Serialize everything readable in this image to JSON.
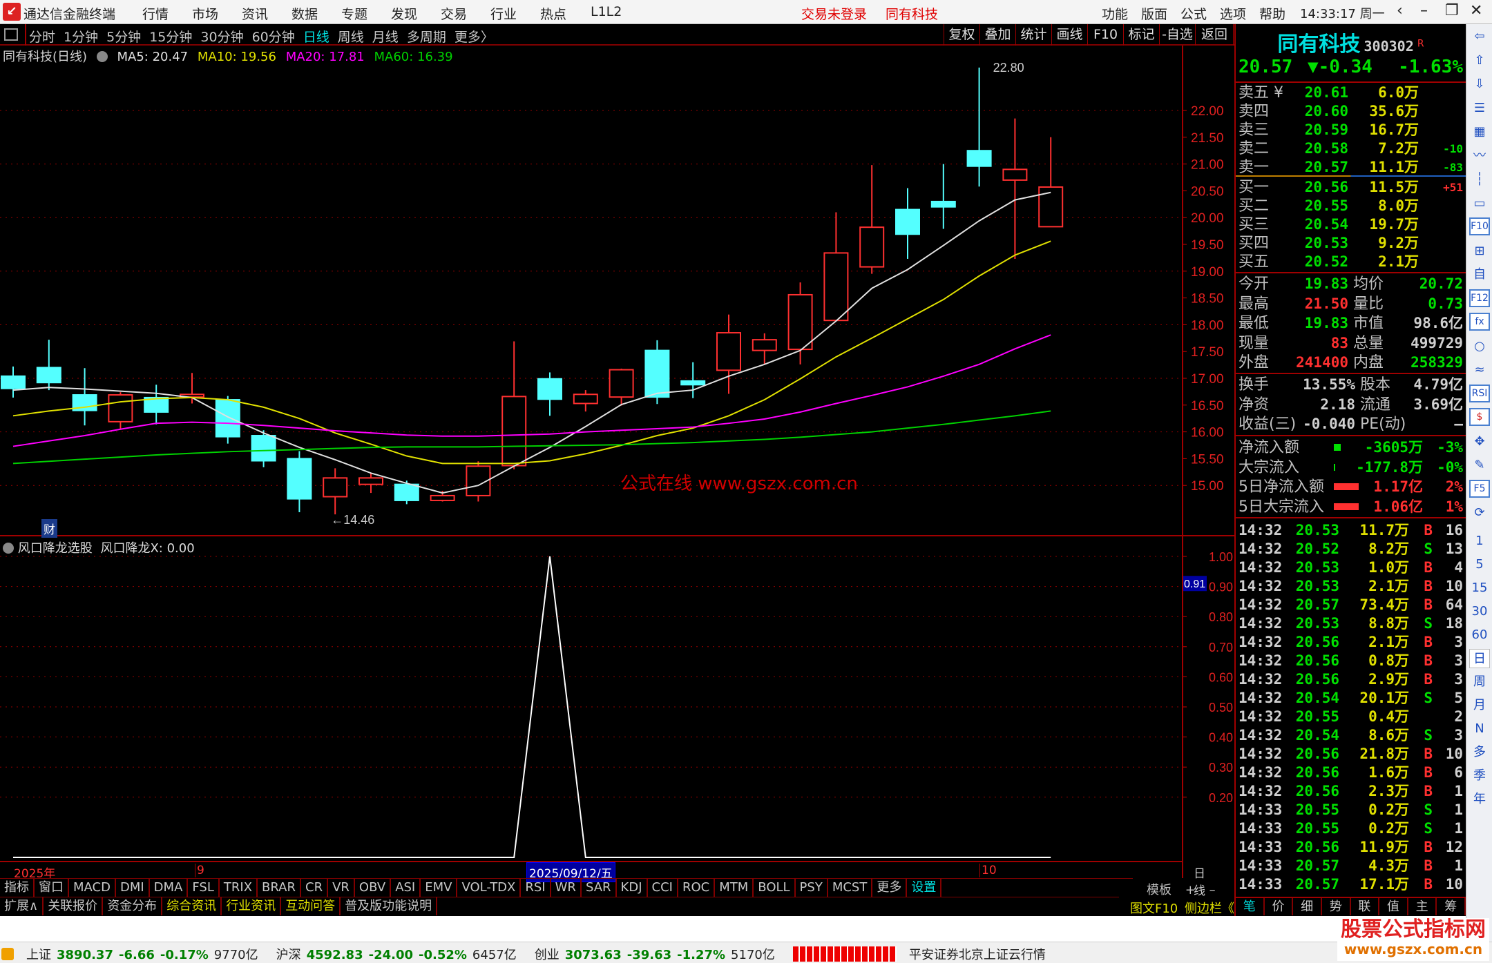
{
  "titlebar": {
    "app_title": "通达信金融终端",
    "menu": [
      "行情",
      "市场",
      "资讯",
      "数据",
      "专题",
      "发现",
      "交易",
      "行业",
      "热点",
      "L1L2"
    ],
    "login_status": "交易未登录",
    "current_stock": "同有科技",
    "right_menu": [
      "功能",
      "版面",
      "公式",
      "选项",
      "帮助"
    ],
    "clock": "14:33:17 周一",
    "controls": [
      "‹",
      "–",
      "❐",
      "✕"
    ]
  },
  "periodbar": {
    "periods": [
      "分时",
      "1分钟",
      "5分钟",
      "15分钟",
      "30分钟",
      "60分钟",
      "日线",
      "周线",
      "月线",
      "多周期",
      "更多〉"
    ],
    "active": "日线",
    "tools": [
      "复权",
      "叠加",
      "统计",
      "画线",
      "F10",
      "标记",
      "-自选",
      "返回"
    ]
  },
  "chart": {
    "title": "同有科技(日线)",
    "ma_labels": [
      {
        "text": "MA5: 20.47",
        "color": "#e0e0e0"
      },
      {
        "text": "MA10: 19.56",
        "color": "#e0e000"
      },
      {
        "text": "MA20: 17.81",
        "color": "#ff00ff"
      },
      {
        "text": "MA60: 16.39",
        "color": "#00d000"
      }
    ],
    "max_label": "22.80",
    "min_label": "←14.46",
    "badge": "财",
    "watermark": "公式在线  www.gszx.com.cn"
  },
  "chart_data": [
    {
      "type": "candlestick",
      "ylim": [
        14.2,
        23.0
      ],
      "y_ticks": [
        "22.00",
        "21.50",
        "21.00",
        "20.50",
        "20.00",
        "19.50",
        "19.00",
        "18.50",
        "18.00",
        "17.50",
        "17.00",
        "16.50",
        "16.00",
        "15.50",
        "15.00"
      ],
      "up_color": "#ff3030",
      "down_color": "#54ffff",
      "ohlc": [
        [
          17.04,
          17.22,
          16.64,
          16.81
        ],
        [
          17.2,
          17.72,
          16.78,
          16.92
        ],
        [
          16.69,
          17.19,
          16.12,
          16.4
        ],
        [
          16.19,
          16.74,
          16.05,
          16.69
        ],
        [
          16.64,
          16.88,
          16.14,
          16.37
        ],
        [
          16.65,
          17.1,
          16.53,
          16.7
        ],
        [
          16.6,
          16.67,
          15.78,
          15.91
        ],
        [
          15.93,
          16.03,
          15.34,
          15.46
        ],
        [
          15.5,
          15.64,
          14.5,
          14.75
        ],
        [
          14.79,
          15.32,
          14.46,
          15.14
        ],
        [
          15.02,
          15.23,
          14.86,
          15.14
        ],
        [
          15.02,
          15.09,
          14.65,
          14.72
        ],
        [
          14.72,
          14.9,
          14.7,
          14.81
        ],
        [
          14.81,
          15.45,
          14.7,
          15.36
        ],
        [
          15.37,
          17.69,
          15.3,
          16.66
        ],
        [
          16.99,
          17.11,
          16.3,
          16.61
        ],
        [
          16.53,
          16.78,
          16.38,
          16.7
        ],
        [
          16.65,
          17.18,
          16.49,
          17.16
        ],
        [
          17.52,
          17.71,
          16.52,
          16.65
        ],
        [
          16.95,
          17.3,
          16.63,
          16.88
        ],
        [
          17.15,
          18.19,
          16.71,
          17.85
        ],
        [
          17.52,
          17.84,
          17.26,
          17.72
        ],
        [
          17.54,
          18.79,
          17.26,
          18.56
        ],
        [
          18.08,
          20.1,
          18.08,
          19.34
        ],
        [
          19.08,
          20.98,
          18.95,
          19.82
        ],
        [
          20.15,
          20.55,
          19.23,
          19.69
        ],
        [
          20.3,
          21.0,
          19.79,
          20.2
        ],
        [
          21.25,
          22.8,
          20.58,
          20.96
        ],
        [
          20.7,
          21.85,
          19.23,
          20.9
        ],
        [
          19.83,
          21.5,
          19.83,
          20.57
        ]
      ],
      "series": [
        {
          "name": "MA5",
          "color": "#e0e0e0",
          "values": [
            16.78,
            16.83,
            16.8,
            16.76,
            16.72,
            16.64,
            16.28,
            15.98,
            15.71,
            15.48,
            15.23,
            15.04,
            14.86,
            15.0,
            15.36,
            15.71,
            16.1,
            16.51,
            16.72,
            16.78,
            17.04,
            17.26,
            17.52,
            18.07,
            18.68,
            19.03,
            19.48,
            19.94,
            20.33,
            20.47
          ]
        },
        {
          "name": "MA10",
          "color": "#e0e000",
          "values": [
            16.3,
            16.39,
            16.46,
            16.56,
            16.62,
            16.64,
            16.6,
            16.46,
            16.25,
            15.98,
            15.77,
            15.55,
            15.41,
            15.41,
            15.41,
            15.46,
            15.59,
            15.75,
            15.93,
            16.07,
            16.3,
            16.6,
            16.99,
            17.4,
            17.75,
            18.11,
            18.47,
            18.91,
            19.3,
            19.56
          ]
        },
        {
          "name": "MA20",
          "color": "#ff00ff",
          "values": [
            15.73,
            15.83,
            15.93,
            16.05,
            16.16,
            16.18,
            16.16,
            16.12,
            16.07,
            16.02,
            15.98,
            15.94,
            15.92,
            15.92,
            15.94,
            15.96,
            16.0,
            16.03,
            16.06,
            16.09,
            16.16,
            16.24,
            16.37,
            16.53,
            16.68,
            16.84,
            17.04,
            17.26,
            17.55,
            17.81
          ]
        },
        {
          "name": "MA60",
          "color": "#00d000",
          "values": [
            15.41,
            15.45,
            15.49,
            15.53,
            15.57,
            15.6,
            15.63,
            15.65,
            15.67,
            15.69,
            15.71,
            15.72,
            15.72,
            15.72,
            15.73,
            15.74,
            15.75,
            15.76,
            15.78,
            15.8,
            15.83,
            15.86,
            15.9,
            15.95,
            16.0,
            16.07,
            16.14,
            16.22,
            16.3,
            16.39
          ]
        }
      ]
    },
    {
      "type": "line",
      "title": "风口降龙选股",
      "value_label": "风口降龙X: 0.00",
      "ylim": [
        0,
        1.0
      ],
      "y_ticks": [
        "1.00",
        "0.90",
        "0.80",
        "0.70",
        "0.60",
        "0.50",
        "0.40",
        "0.30",
        "0.20"
      ],
      "cursor_value": "0.91",
      "series": [
        {
          "name": "风口降龙X",
          "color": "#ffffff",
          "values": [
            0,
            0,
            0,
            0,
            0,
            0,
            0,
            0,
            0,
            0,
            0,
            0,
            0,
            0,
            0,
            1,
            0,
            0,
            0,
            0,
            0,
            0,
            0,
            0,
            0,
            0,
            0,
            0,
            0,
            0
          ]
        }
      ]
    }
  ],
  "dateaxis": {
    "labels": [
      "2025年",
      "9",
      "2025/09/12/五",
      "10"
    ],
    "period": "日线"
  },
  "indicator_tabs": [
    "指标",
    "窗口",
    "MACD",
    "DMI",
    "DMA",
    "FSL",
    "TRIX",
    "BRAR",
    "CR",
    "VR",
    "OBV",
    "ASI",
    "EMV",
    "VOL-TDX",
    "RSI",
    "WR",
    "SAR",
    "KDJ",
    "CCI",
    "ROC",
    "MTM",
    "BOLL",
    "PSY",
    "MCST",
    "更多",
    "设置"
  ],
  "indicator_right": [
    "模板",
    "+",
    "–"
  ],
  "ext_tabs": [
    "扩展∧",
    "关联报价",
    "资金分布",
    "综合资讯",
    "行业资讯",
    "互动问答",
    "普及版功能说明"
  ],
  "ext_right": [
    "图文F10",
    "侧边栏《"
  ],
  "quote": {
    "name": "同有科技",
    "code": "300302",
    "flag": "R",
    "price": "20.57",
    "change": "▼-0.34",
    "change_pct": "-1.63%",
    "asks": [
      {
        "label": "卖五 ¥",
        "price": "20.61",
        "vol": "6.0万",
        "delta": ""
      },
      {
        "label": "卖四",
        "price": "20.60",
        "vol": "35.6万",
        "delta": ""
      },
      {
        "label": "卖三",
        "price": "20.59",
        "vol": "16.7万",
        "delta": ""
      },
      {
        "label": "卖二",
        "price": "20.58",
        "vol": "7.2万",
        "delta": "-10"
      },
      {
        "label": "卖一",
        "price": "20.57",
        "vol": "11.1万",
        "delta": "-83"
      }
    ],
    "bids": [
      {
        "label": "买一",
        "price": "20.56",
        "vol": "11.5万",
        "delta": "+51"
      },
      {
        "label": "买二",
        "price": "20.55",
        "vol": "8.0万",
        "delta": ""
      },
      {
        "label": "买三",
        "price": "20.54",
        "vol": "19.7万",
        "delta": ""
      },
      {
        "label": "买四",
        "price": "20.53",
        "vol": "9.2万",
        "delta": ""
      },
      {
        "label": "买五",
        "price": "20.52",
        "vol": "2.1万",
        "delta": ""
      }
    ],
    "stats": [
      {
        "l1": "今开",
        "v1": "19.83",
        "c1": "g",
        "l2": "均价",
        "v2": "20.72",
        "c2": "g"
      },
      {
        "l1": "最高",
        "v1": "21.50",
        "c1": "r",
        "l2": "量比",
        "v2": "0.73",
        "c2": "g"
      },
      {
        "l1": "最低",
        "v1": "19.83",
        "c1": "g",
        "l2": "市值",
        "v2": "98.6亿",
        "c2": "w"
      },
      {
        "l1": "现量",
        "v1": "83",
        "c1": "r",
        "l2": "总量",
        "v2": "499729",
        "c2": "w"
      },
      {
        "l1": "外盘",
        "v1": "241400",
        "c1": "r",
        "l2": "内盘",
        "v2": "258329",
        "c2": "g"
      }
    ],
    "fundamentals": [
      {
        "l1": "换手",
        "v1": "13.55%",
        "l2": "股本",
        "v2": "4.79亿"
      },
      {
        "l1": "净资",
        "v1": "2.18",
        "l2": "流通",
        "v2": "3.69亿"
      },
      {
        "l1": "收益(三)",
        "v1": "-0.040",
        "l2": "PE(动)",
        "v2": "—"
      }
    ],
    "flows": [
      {
        "label": "净流入额",
        "value": "-3605万",
        "pct": "-3%",
        "color": "g",
        "bar": "small"
      },
      {
        "label": "大宗流入",
        "value": "-177.8万",
        "pct": "-0%",
        "color": "g",
        "bar": "tiny"
      },
      {
        "label": "5日净流入额",
        "value": "1.17亿",
        "pct": "2%",
        "color": "r",
        "bar": "long"
      },
      {
        "label": "5日大宗流入",
        "value": "1.06亿",
        "pct": "1%",
        "color": "r",
        "bar": "long"
      }
    ]
  },
  "trades": [
    [
      "14:32",
      "20.53",
      "11.7万",
      "B",
      "16"
    ],
    [
      "14:32",
      "20.52",
      "8.2万",
      "S",
      "13"
    ],
    [
      "14:32",
      "20.53",
      "1.0万",
      "B",
      "4"
    ],
    [
      "14:32",
      "20.53",
      "2.1万",
      "B",
      "10"
    ],
    [
      "14:32",
      "20.57",
      "73.4万",
      "B",
      "64"
    ],
    [
      "14:32",
      "20.53",
      "8.8万",
      "S",
      "18"
    ],
    [
      "14:32",
      "20.56",
      "2.1万",
      "B",
      "3"
    ],
    [
      "14:32",
      "20.56",
      "0.8万",
      "B",
      "3"
    ],
    [
      "14:32",
      "20.56",
      "2.9万",
      "B",
      "3"
    ],
    [
      "14:32",
      "20.54",
      "20.1万",
      "S",
      "5"
    ],
    [
      "14:32",
      "20.55",
      "0.4万",
      "",
      "2"
    ],
    [
      "14:32",
      "20.54",
      "8.6万",
      "S",
      "3"
    ],
    [
      "14:32",
      "20.56",
      "21.8万",
      "B",
      "10"
    ],
    [
      "14:32",
      "20.56",
      "1.6万",
      "B",
      "6"
    ],
    [
      "14:32",
      "20.56",
      "2.3万",
      "B",
      "1"
    ],
    [
      "14:33",
      "20.55",
      "0.2万",
      "S",
      "1"
    ],
    [
      "14:33",
      "20.55",
      "0.2万",
      "S",
      "1"
    ],
    [
      "14:33",
      "20.56",
      "11.9万",
      "B",
      "12"
    ],
    [
      "14:33",
      "20.57",
      "4.3万",
      "B",
      "1"
    ],
    [
      "14:33",
      "20.57",
      "17.1万",
      "B",
      "10"
    ]
  ],
  "trade_tabs": [
    "笔",
    "价",
    "细",
    "势",
    "联",
    "值",
    "主",
    "筹"
  ],
  "sidebar": {
    "icons": [
      "arrow-left",
      "arrow-up",
      "arrow-down",
      "report",
      "grid",
      "trend",
      "candles",
      "window",
      "F10",
      "tree",
      "self",
      "F12",
      "fx",
      "circle"
    ],
    "icons2": [
      "wave",
      "RSI",
      "$",
      "move",
      "pencil",
      "F5",
      "refresh"
    ],
    "periods": [
      "1",
      "5",
      "15",
      "30",
      "60",
      "日",
      "周",
      "月",
      "N",
      "多",
      "季",
      "年"
    ]
  },
  "statusbar": {
    "indices": [
      {
        "name": "上证",
        "value": "3890.37",
        "change": "-6.66",
        "pct": "-0.17%",
        "amount": "9770亿"
      },
      {
        "name": "沪深",
        "value": "4592.83",
        "change": "-24.00",
        "pct": "-0.52%",
        "amount": "6457亿"
      },
      {
        "name": "创业",
        "value": "3073.63",
        "change": "-39.63",
        "pct": "-1.27%",
        "amount": "5170亿"
      }
    ],
    "broker": "平安证券北京上证云行情"
  },
  "brand": {
    "line1": "股票公式指标网",
    "line2": "www.gszx.com.cn"
  }
}
